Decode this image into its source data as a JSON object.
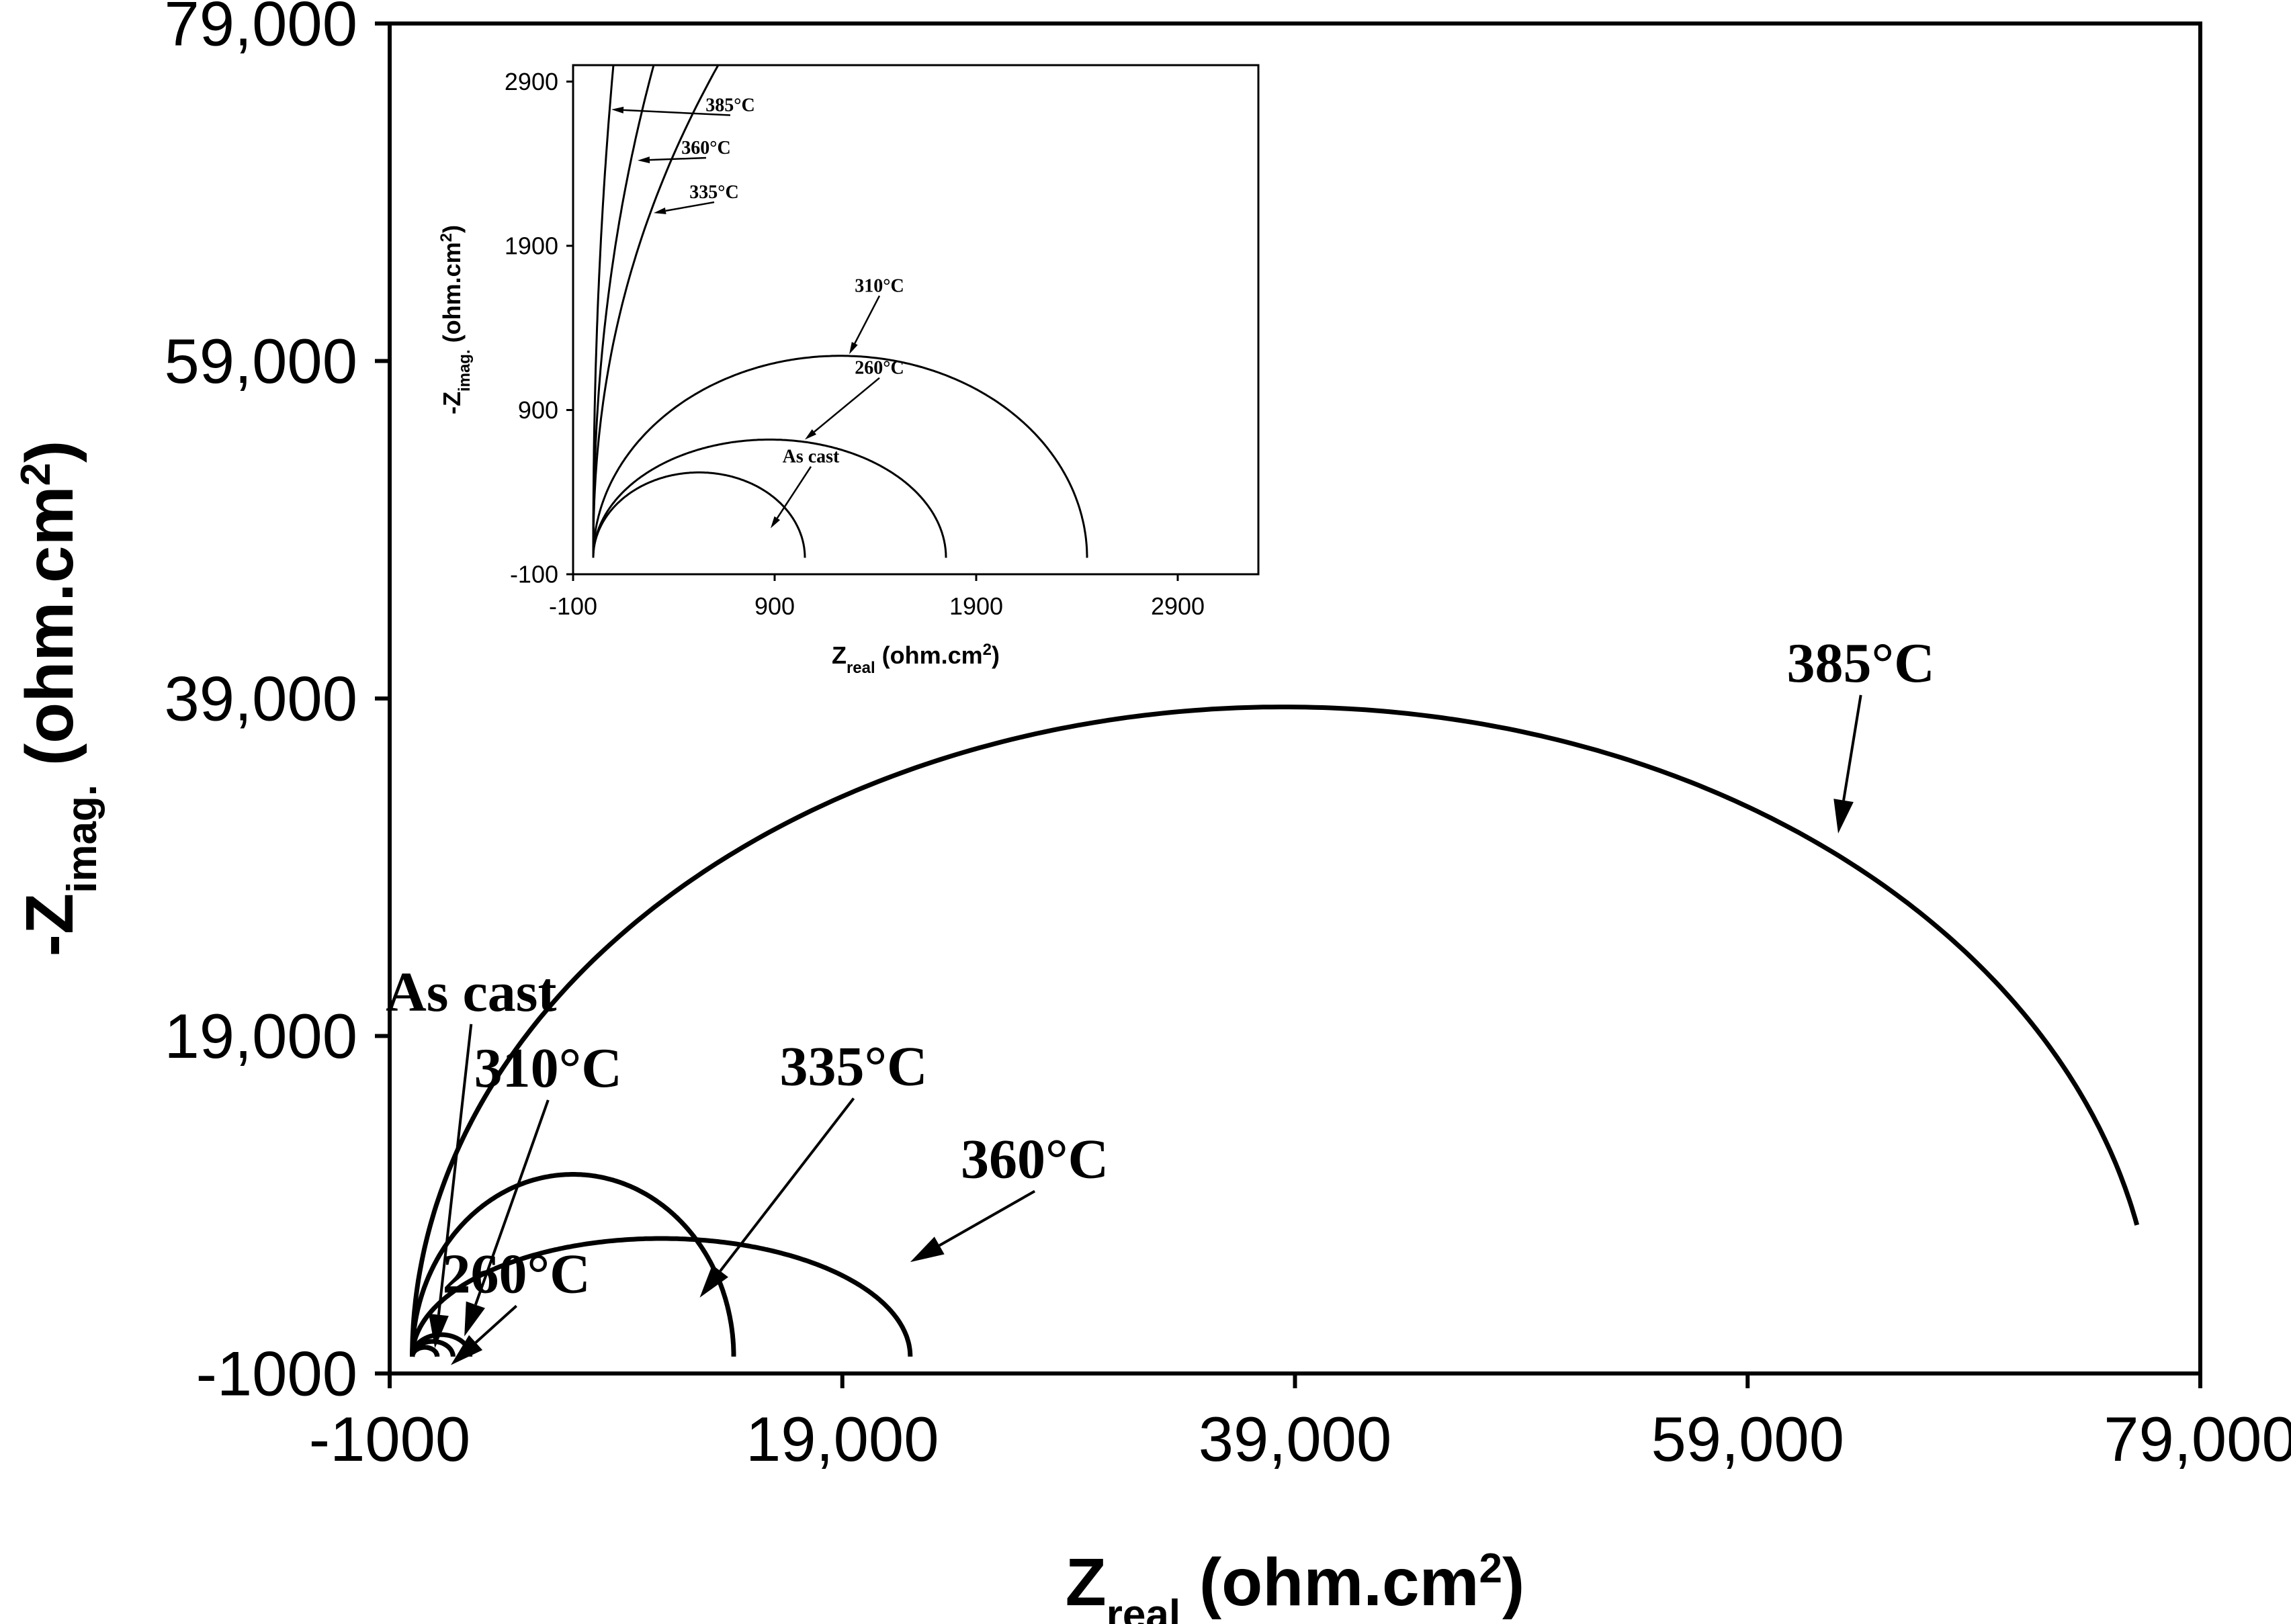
{
  "chart_data": [
    {
      "type": "line",
      "name": "main",
      "title": "",
      "xlabel": {
        "main": "Z",
        "sub": "real",
        "rest": " (ohm.cm",
        "sup": "2",
        "end": ")"
      },
      "ylabel": {
        "main": "-Z",
        "sub": "imag.",
        "rest": " (ohm.cm",
        "sup": "2",
        "end": ")"
      },
      "xlim": [
        -1000,
        79000
      ],
      "ylim": [
        -1000,
        79000
      ],
      "xticks": [
        -1000,
        19000,
        39000,
        59000,
        79000
      ],
      "yticks": [
        -1000,
        19000,
        39000,
        59000,
        79000
      ],
      "xtick_labels": [
        "-1000",
        "19,000",
        "39,000",
        "59,000",
        "79,000"
      ],
      "ytick_labels": [
        "-1000",
        "19,000",
        "39,000",
        "59,000",
        "79,000"
      ],
      "series": [
        {
          "name": "As cast",
          "r_start": 0,
          "r_end": 1100,
          "peak": 550
        },
        {
          "name": "260°C",
          "r_start": 0,
          "r_end": 1800,
          "peak": 900
        },
        {
          "name": "310°C",
          "r_start": 0,
          "r_end": 2550,
          "peak": 1300
        },
        {
          "name": "335°C",
          "r_start": 0,
          "r_end": 14200,
          "peak": 10800
        },
        {
          "name": "360°C",
          "r_start": 0,
          "r_end": 22000,
          "peak": 7000
        },
        {
          "name": "385°C",
          "r_start": 0,
          "r_end": 77000,
          "peak": 38500,
          "end_y": 7800
        }
      ],
      "labels": [
        {
          "text": "385°C",
          "x": 64000,
          "y": 40000,
          "tip_x": 63000,
          "tip_y": 31000
        },
        {
          "text": "360°C",
          "x": 27500,
          "y": 10600,
          "tip_x": 22000,
          "tip_y": 5600
        },
        {
          "text": "335°C",
          "x": 19500,
          "y": 16100,
          "tip_x": 12700,
          "tip_y": 3500
        },
        {
          "text": "310°C",
          "x": 6000,
          "y": 16000,
          "tip_x": 2300,
          "tip_y": 1200
        },
        {
          "text": "260°C",
          "x": 4600,
          "y": 3800,
          "tip_x": 1700,
          "tip_y": -500
        },
        {
          "text": "As cast",
          "x": 2600,
          "y": 20500,
          "tip_x": 1000,
          "tip_y": 500
        }
      ]
    },
    {
      "type": "line",
      "name": "inset",
      "xlabel": {
        "main": "Z",
        "sub": "real",
        "rest": " (ohm.cm",
        "sup": "2",
        "end": ")"
      },
      "ylabel": {
        "main": "-Z",
        "sub": "imag.",
        "rest": " (ohm.cm",
        "sup": "2",
        "end": ")"
      },
      "xlim": [
        -100,
        3300
      ],
      "ylim": [
        -100,
        3000
      ],
      "xticks": [
        -100,
        900,
        1900,
        2900
      ],
      "yticks": [
        -100,
        900,
        1900,
        2900
      ],
      "xtick_labels": [
        "-100",
        "900",
        "1900",
        "2900"
      ],
      "ytick_labels": [
        "-100",
        "900",
        "1900",
        "2900"
      ],
      "series": [
        {
          "name": "As cast",
          "r_start": 0,
          "r_end": 1050,
          "peak": 520
        },
        {
          "name": "260°C",
          "r_start": 0,
          "r_end": 1750,
          "peak": 720
        },
        {
          "name": "310°C",
          "r_start": 0,
          "r_end": 2450,
          "peak": 1230
        },
        {
          "name": "335°C",
          "shape": "steep",
          "x_top": 620,
          "y_top": 3000
        },
        {
          "name": "360°C",
          "shape": "steep",
          "x_top": 300,
          "y_top": 3000
        },
        {
          "name": "385°C",
          "shape": "steep",
          "x_top": 100,
          "y_top": 3000
        }
      ],
      "labels": [
        {
          "text": "385°C",
          "x": 680,
          "y": 2720,
          "tip_x": 90,
          "tip_y": 2730
        },
        {
          "text": "360°C",
          "x": 560,
          "y": 2460,
          "tip_x": 220,
          "tip_y": 2420
        },
        {
          "text": "335°C",
          "x": 600,
          "y": 2190,
          "tip_x": 300,
          "tip_y": 2100
        },
        {
          "text": "310°C",
          "x": 1420,
          "y": 1620,
          "tip_x": 1270,
          "tip_y": 1240
        },
        {
          "text": "260°C",
          "x": 1420,
          "y": 1120,
          "tip_x": 1050,
          "tip_y": 720
        },
        {
          "text": "As cast",
          "x": 1080,
          "y": 580,
          "tip_x": 880,
          "tip_y": 180
        }
      ]
    }
  ]
}
